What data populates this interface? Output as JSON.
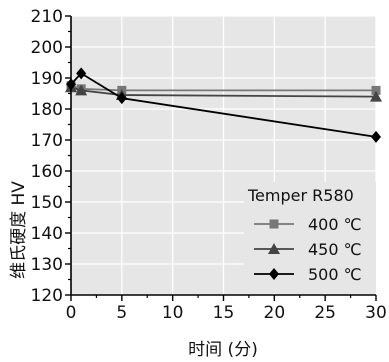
{
  "chart_data": {
    "type": "line",
    "title": "",
    "xlabel": "时间 (分)",
    "ylabel": "维氏硬度 HV",
    "xlim": [
      0,
      30
    ],
    "ylim": [
      120,
      210
    ],
    "x_ticks": [
      0,
      5,
      10,
      15,
      20,
      25,
      30
    ],
    "y_ticks": [
      120,
      130,
      140,
      150,
      160,
      170,
      180,
      190,
      200,
      210
    ],
    "grid": true,
    "legend": {
      "title": "Temper R580",
      "placement": "bottom-right"
    },
    "series": [
      {
        "name": "400 ℃",
        "marker": "square",
        "color": "#777777",
        "x": [
          0,
          1,
          5,
          30
        ],
        "y": [
          187.5,
          186.5,
          186.0,
          186.0
        ]
      },
      {
        "name": "450 ℃",
        "marker": "triangle",
        "color": "#444444",
        "x": [
          0,
          1,
          5,
          30
        ],
        "y": [
          187.0,
          186.0,
          184.5,
          184.0
        ]
      },
      {
        "name": "500 ℃",
        "marker": "diamond",
        "color": "#000000",
        "x": [
          0,
          1,
          5,
          30
        ],
        "y": [
          188.0,
          191.5,
          183.5,
          171.0
        ]
      }
    ]
  }
}
